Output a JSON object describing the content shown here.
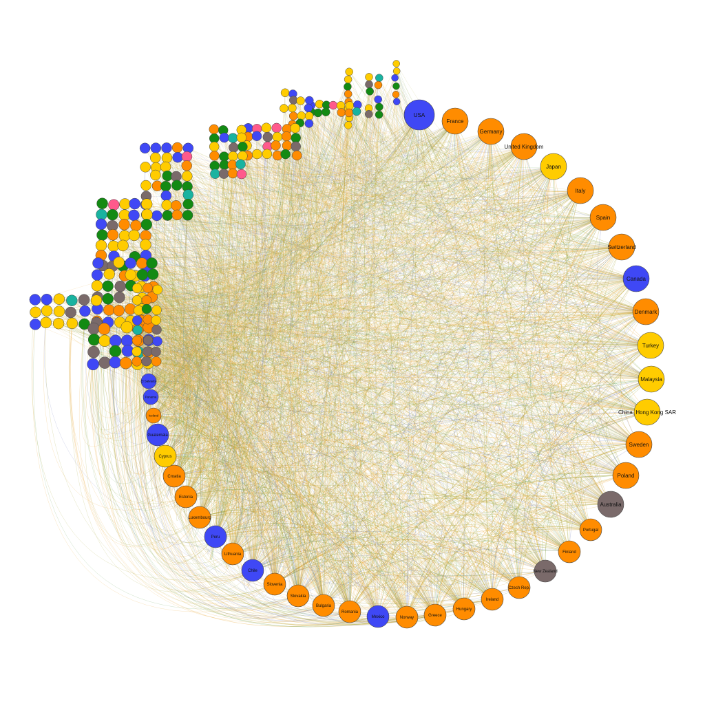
{
  "diagram": {
    "colors": {
      "orange": "#ff8c00",
      "yellow": "#ffcc00",
      "blue": "#3f48f5",
      "green": "#138a13",
      "gray": "#7a6a6a",
      "pink": "#ff5a8c",
      "teal": "#19b3a0",
      "node_stroke": "#444444",
      "edge_orange": "#e8a32a",
      "edge_olive": "#a3a32a",
      "edge_blue": "#6a78b8",
      "edge_green": "#5d9a4a"
    },
    "labeled_nodes": [
      {
        "name": "USA",
        "color": "blue",
        "size": "xl"
      },
      {
        "name": "France",
        "color": "orange",
        "size": "l"
      },
      {
        "name": "Germany",
        "color": "orange",
        "size": "l"
      },
      {
        "name": "United Kingdom",
        "color": "orange",
        "size": "l"
      },
      {
        "name": "Japan",
        "color": "yellow",
        "size": "l"
      },
      {
        "name": "Italy",
        "color": "orange",
        "size": "l"
      },
      {
        "name": "Spain",
        "color": "orange",
        "size": "l"
      },
      {
        "name": "Switzerland",
        "color": "orange",
        "size": "l"
      },
      {
        "name": "Canada",
        "color": "blue",
        "size": "l"
      },
      {
        "name": "Denmark",
        "color": "orange",
        "size": "l"
      },
      {
        "name": "Turkey",
        "color": "yellow",
        "size": "l"
      },
      {
        "name": "Malaysia",
        "color": "yellow",
        "size": "l"
      },
      {
        "name": "China, Hong Kong SAR",
        "color": "yellow",
        "size": "l"
      },
      {
        "name": "Sweden",
        "color": "orange",
        "size": "l"
      },
      {
        "name": "Poland",
        "color": "orange",
        "size": "l"
      },
      {
        "name": "Australia",
        "color": "gray",
        "size": "l"
      },
      {
        "name": "Portugal",
        "color": "orange",
        "size": "m"
      },
      {
        "name": "Finland",
        "color": "orange",
        "size": "m"
      },
      {
        "name": "New Zealand",
        "color": "gray",
        "size": "m"
      },
      {
        "name": "Czech Rep.",
        "color": "orange",
        "size": "m"
      },
      {
        "name": "Ireland",
        "color": "orange",
        "size": "m"
      },
      {
        "name": "Hungary",
        "color": "orange",
        "size": "m"
      },
      {
        "name": "Greece",
        "color": "orange",
        "size": "m"
      },
      {
        "name": "Norway",
        "color": "orange",
        "size": "m"
      },
      {
        "name": "Mexico",
        "color": "blue",
        "size": "m"
      },
      {
        "name": "Romania",
        "color": "orange",
        "size": "m"
      },
      {
        "name": "Bulgaria",
        "color": "orange",
        "size": "m"
      },
      {
        "name": "Slovakia",
        "color": "orange",
        "size": "m"
      },
      {
        "name": "Slovenia",
        "color": "orange",
        "size": "m"
      },
      {
        "name": "Chile",
        "color": "blue",
        "size": "m"
      },
      {
        "name": "Lithuania",
        "color": "orange",
        "size": "m"
      },
      {
        "name": "Peru",
        "color": "blue",
        "size": "m"
      },
      {
        "name": "Luxembourg",
        "color": "orange",
        "size": "m"
      },
      {
        "name": "Estonia",
        "color": "orange",
        "size": "m"
      },
      {
        "name": "Croatia",
        "color": "orange",
        "size": "m"
      },
      {
        "name": "Cyprus",
        "color": "yellow",
        "size": "m"
      },
      {
        "name": "Guatemala",
        "color": "blue",
        "size": "m"
      },
      {
        "name": "Iceland",
        "color": "orange",
        "size": "s"
      },
      {
        "name": "Panama",
        "color": "blue",
        "size": "s"
      },
      {
        "name": "El Salvador",
        "color": "blue",
        "size": "s"
      }
    ]
  }
}
